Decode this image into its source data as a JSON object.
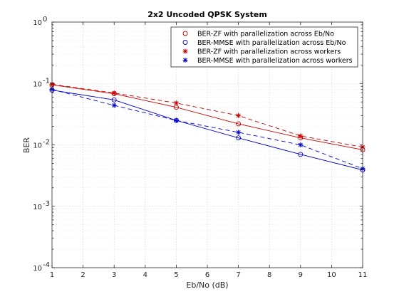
{
  "chart_data": {
    "type": "line",
    "title": "2x2 Uncoded QPSK System",
    "xlabel": "Eb/No (dB)",
    "ylabel": "BER",
    "xlim": [
      1,
      11
    ],
    "ylim": [
      0.0001,
      1
    ],
    "yscale": "log",
    "grid": true,
    "minor_grid": true,
    "legend_position": "top-right",
    "x_ticks": [
      1,
      2,
      3,
      4,
      5,
      6,
      7,
      8,
      9,
      10,
      11
    ],
    "x_tick_labels": [
      "1",
      "2",
      "3",
      "4",
      "5",
      "6",
      "7",
      "8",
      "9",
      "10",
      "11"
    ],
    "y_ticks": [
      {
        "value": 1,
        "base": "10",
        "exp": "0"
      },
      {
        "value": 0.1,
        "base": "10",
        "exp": "-1"
      },
      {
        "value": 0.01,
        "base": "10",
        "exp": "-2"
      },
      {
        "value": 0.001,
        "base": "10",
        "exp": "-3"
      },
      {
        "value": 0.0001,
        "base": "10",
        "exp": "-4"
      }
    ],
    "x": [
      1,
      3,
      5,
      7,
      9,
      11
    ],
    "series": [
      {
        "name": "BER-ZF with parallelization across Eb/No",
        "color": "#cc0000",
        "line": "solid",
        "marker": "circle",
        "values": [
          0.095,
          0.068,
          0.041,
          0.022,
          0.013,
          0.0083
        ]
      },
      {
        "name": "BER-MMSE with parallelization across Eb/No",
        "color": "#0000cc",
        "line": "solid",
        "marker": "circle",
        "values": [
          0.078,
          0.054,
          0.025,
          0.013,
          0.007,
          0.0039
        ]
      },
      {
        "name": "BER-ZF with parallelization across workers",
        "color": "#cc0000",
        "line": "dashed",
        "marker": "star",
        "values": [
          0.097,
          0.07,
          0.048,
          0.03,
          0.014,
          0.0092
        ]
      },
      {
        "name": "BER-MMSE with parallelization across workers",
        "color": "#0000cc",
        "line": "dashed",
        "marker": "star",
        "values": [
          0.08,
          0.044,
          0.025,
          0.016,
          0.01,
          0.0041
        ]
      }
    ]
  }
}
